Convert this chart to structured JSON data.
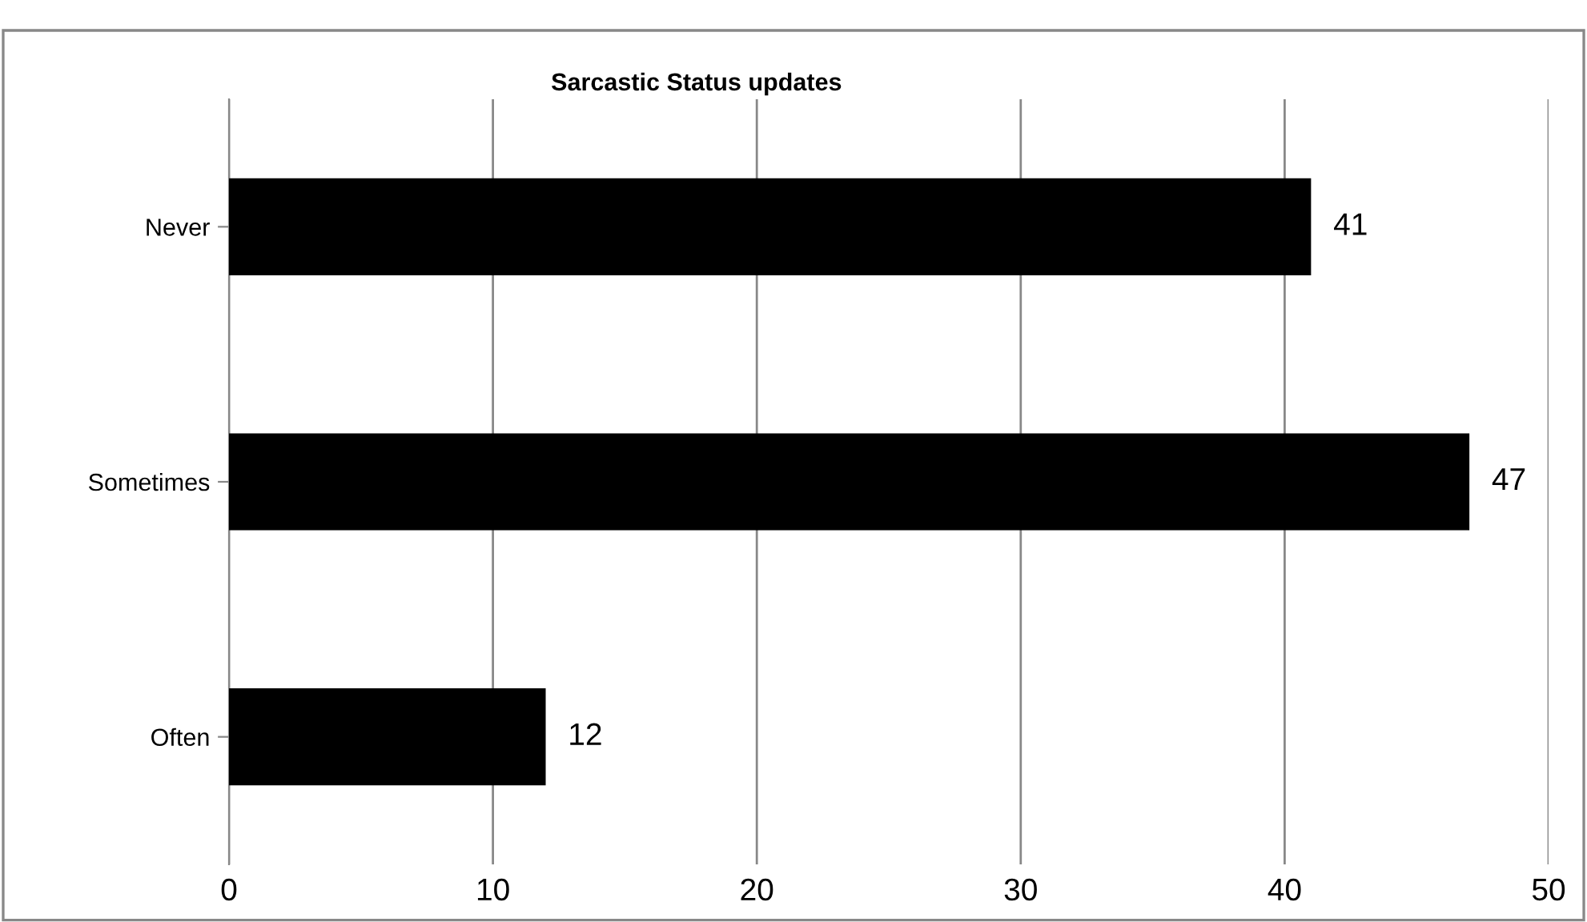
{
  "chart_data": {
    "type": "bar",
    "orientation": "horizontal",
    "title": "Sarcastic Status updates",
    "categories": [
      "Never",
      "Sometimes",
      "Often"
    ],
    "values": [
      41,
      47,
      12
    ],
    "color": "#000000",
    "xlim": [
      0,
      50
    ],
    "xticks": [
      0,
      10,
      20,
      30,
      40,
      50
    ],
    "grid": "x",
    "data_labels": true,
    "legend": false
  }
}
